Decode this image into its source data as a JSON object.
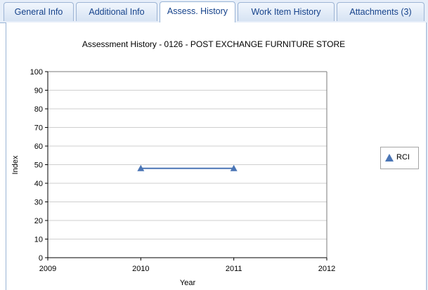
{
  "tabs": [
    {
      "label": "General Info",
      "active": false
    },
    {
      "label": "Additional Info",
      "active": false
    },
    {
      "label": "Assess. History",
      "active": true
    },
    {
      "label": "Work Item History",
      "active": false
    },
    {
      "label": "Attachments (3)",
      "active": false
    }
  ],
  "colors": {
    "series": "#4a75b5",
    "grid": "#cfcfcf",
    "tab_text": "#15428b"
  },
  "chart_data": {
    "type": "line",
    "title": "Assessment History - 0126 - POST EXCHANGE FURNITURE STORE",
    "xlabel": "Year",
    "ylabel": "Index",
    "xlim": [
      2009,
      2012
    ],
    "ylim": [
      0,
      100
    ],
    "x_ticks": [
      2009,
      2010,
      2011,
      2012
    ],
    "y_ticks": [
      0,
      10,
      20,
      30,
      40,
      50,
      60,
      70,
      80,
      90,
      100
    ],
    "grid": true,
    "legend_position": "right",
    "series": [
      {
        "name": "RCI",
        "marker": "triangle",
        "x": [
          2010,
          2011
        ],
        "y": [
          48,
          48
        ]
      }
    ]
  }
}
